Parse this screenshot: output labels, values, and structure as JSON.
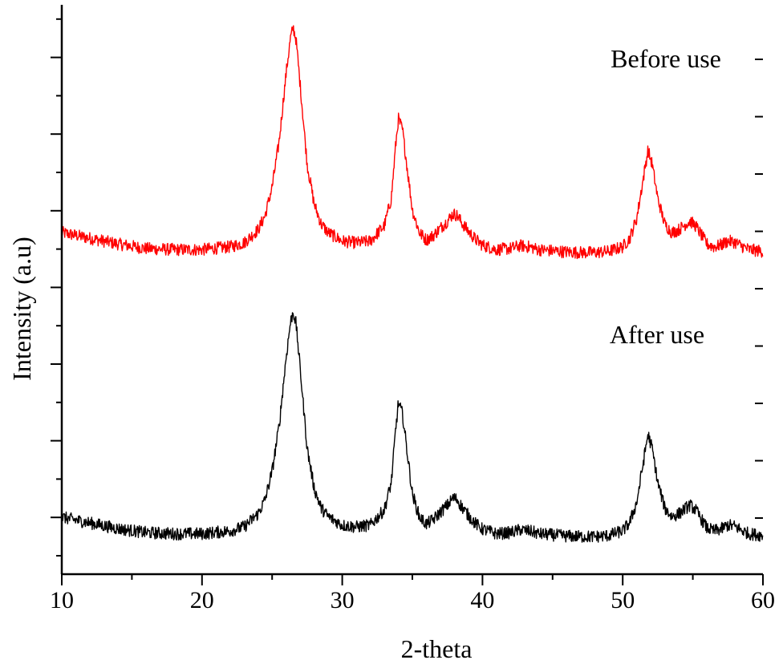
{
  "chart_data": {
    "type": "line",
    "xlabel": "2-theta",
    "ylabel": "Intensity (a.u)",
    "xlim": [
      10,
      60
    ],
    "xticks": [
      "10",
      "20",
      "30",
      "40",
      "50",
      "60"
    ],
    "ylim": [
      0,
      1
    ],
    "y_tick_labels_shown": false,
    "grid": false,
    "annotations": [
      "Before use",
      "After use"
    ],
    "series": [
      {
        "name": "Before use",
        "color": "#ff0000",
        "x": [
          10,
          12,
          14,
          16,
          18,
          20,
          22,
          23,
          24,
          24.5,
          25,
          25.5,
          26,
          26.3,
          26.5,
          26.7,
          27,
          27.5,
          28,
          28.5,
          29,
          30,
          31,
          32,
          33,
          33.5,
          33.8,
          34,
          34.3,
          34.7,
          35,
          35.5,
          36,
          36.5,
          37,
          37.5,
          37.9,
          38.2,
          38.5,
          39,
          39.5,
          40,
          41,
          42,
          42.7,
          43.5,
          44,
          45,
          46,
          47,
          48,
          49,
          50,
          50.5,
          51,
          51.5,
          51.8,
          52.1,
          52.5,
          53,
          53.5,
          54,
          54.5,
          54.8,
          55.2,
          55.7,
          56,
          56.5,
          57,
          57.5,
          58,
          58.5,
          59,
          60
        ],
        "y": [
          0.6,
          0.59,
          0.58,
          0.572,
          0.57,
          0.57,
          0.575,
          0.582,
          0.605,
          0.63,
          0.68,
          0.76,
          0.88,
          0.94,
          0.96,
          0.94,
          0.86,
          0.72,
          0.65,
          0.615,
          0.6,
          0.585,
          0.582,
          0.585,
          0.612,
          0.66,
          0.75,
          0.8,
          0.78,
          0.7,
          0.64,
          0.6,
          0.587,
          0.595,
          0.608,
          0.62,
          0.633,
          0.63,
          0.618,
          0.602,
          0.588,
          0.578,
          0.57,
          0.572,
          0.577,
          0.574,
          0.57,
          0.568,
          0.566,
          0.565,
          0.565,
          0.567,
          0.575,
          0.59,
          0.625,
          0.7,
          0.745,
          0.72,
          0.66,
          0.615,
          0.6,
          0.605,
          0.615,
          0.62,
          0.612,
          0.592,
          0.58,
          0.575,
          0.578,
          0.585,
          0.583,
          0.576,
          0.57,
          0.567
        ]
      },
      {
        "name": "After use",
        "color": "#000000",
        "x": [
          10,
          12,
          14,
          16,
          18,
          20,
          22,
          23,
          24,
          24.5,
          25,
          25.5,
          26,
          26.3,
          26.5,
          26.7,
          27,
          27.5,
          28,
          28.5,
          29,
          30,
          31,
          32,
          33,
          33.5,
          33.8,
          34,
          34.3,
          34.7,
          35,
          35.5,
          36,
          36.5,
          37,
          37.5,
          37.9,
          38.2,
          38.5,
          39,
          39.5,
          40,
          41,
          42,
          42.7,
          43.5,
          44,
          45,
          46,
          47,
          48,
          49,
          50,
          50.5,
          51,
          51.5,
          51.8,
          52.1,
          52.5,
          53,
          53.5,
          54,
          54.5,
          54.8,
          55.2,
          55.7,
          56,
          56.5,
          57,
          57.5,
          58,
          58.5,
          59,
          60
        ],
        "y": [
          0.1,
          0.09,
          0.08,
          0.073,
          0.071,
          0.071,
          0.076,
          0.083,
          0.106,
          0.131,
          0.181,
          0.261,
          0.381,
          0.441,
          0.461,
          0.441,
          0.361,
          0.221,
          0.151,
          0.116,
          0.101,
          0.086,
          0.083,
          0.086,
          0.113,
          0.161,
          0.251,
          0.301,
          0.281,
          0.201,
          0.141,
          0.101,
          0.088,
          0.096,
          0.109,
          0.121,
          0.134,
          0.131,
          0.119,
          0.103,
          0.089,
          0.079,
          0.071,
          0.073,
          0.078,
          0.075,
          0.071,
          0.069,
          0.067,
          0.066,
          0.066,
          0.068,
          0.076,
          0.091,
          0.126,
          0.201,
          0.246,
          0.221,
          0.161,
          0.116,
          0.101,
          0.106,
          0.116,
          0.121,
          0.113,
          0.093,
          0.081,
          0.076,
          0.079,
          0.086,
          0.084,
          0.077,
          0.071,
          0.068
        ]
      }
    ]
  }
}
